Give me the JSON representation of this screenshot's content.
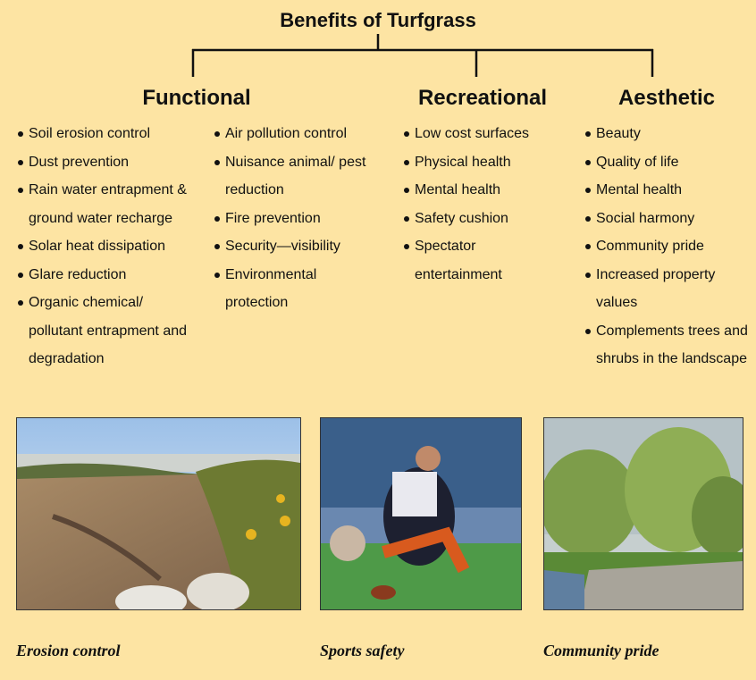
{
  "title": "Benefits of Turfgrass",
  "groups": [
    {
      "heading": "Functional",
      "columns": [
        [
          "Soil erosion control",
          "Dust prevention",
          "Rain water entrapment & ground water recharge",
          "Solar heat dissipation",
          "Glare reduction",
          "Organic chemical/ pollutant entrapment and degradation"
        ],
        [
          "Air pollution control",
          "Nuisance animal/ pest reduction",
          "Fire prevention",
          "Security—visibility",
          "Environmental protection"
        ]
      ]
    },
    {
      "heading": "Recreational",
      "columns": [
        [
          "Low cost surfaces",
          "Physical health",
          "Mental health",
          "Safety cushion",
          "Spectator entertainment"
        ]
      ]
    },
    {
      "heading": "Aesthetic",
      "columns": [
        [
          "Beauty",
          "Quality of life",
          "Mental health",
          "Social harmony",
          "Community pride",
          "Increased property values",
          "Complements trees and shrubs in the landscape"
        ]
      ]
    }
  ],
  "photos": [
    {
      "caption": "Erosion control"
    },
    {
      "caption": "Sports safety"
    },
    {
      "caption": "Community pride"
    }
  ]
}
